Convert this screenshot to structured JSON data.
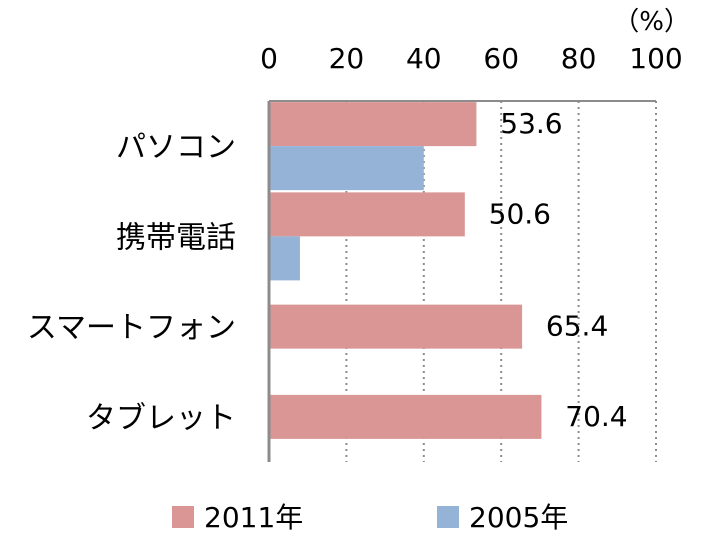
{
  "chart_data": {
    "type": "bar",
    "orientation": "horizontal",
    "unit": "（%）",
    "xlim": [
      0,
      100
    ],
    "x_ticks": [
      "0",
      "20",
      "40",
      "60",
      "80",
      "100"
    ],
    "grid": "vertical dotted",
    "legend_position": "bottom",
    "categories": [
      "パソコン",
      "携帯電話",
      "スマートフォン",
      "タブレット"
    ],
    "series": [
      {
        "name": "2011年",
        "color": "#d99694",
        "values": [
          53.6,
          50.6,
          65.4,
          70.4
        ],
        "labels": [
          "53.6",
          "50.6",
          "65.4",
          "70.4"
        ]
      },
      {
        "name": "2005年",
        "color": "#95b3d7",
        "values": [
          40.0,
          8.0,
          null,
          null
        ],
        "labels": []
      }
    ]
  }
}
